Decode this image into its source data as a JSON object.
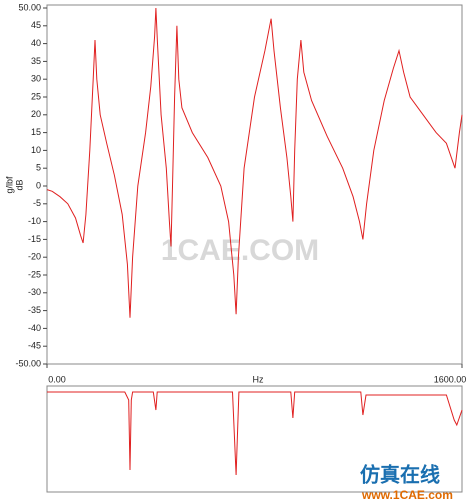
{
  "chart_data": [
    {
      "type": "line",
      "y_label_units": "g/lbf",
      "y_label": "dB",
      "x_label": "Hz",
      "xlim": [
        0,
        1600
      ],
      "xticks": [
        {
          "value": 0,
          "label": "0.00"
        },
        {
          "value": 1600,
          "label": "1600.00"
        }
      ],
      "ylim": [
        -50,
        50
      ],
      "yticks": [
        {
          "value": -50,
          "label": "-50.00"
        },
        -45,
        -40,
        -35,
        -30,
        -25,
        -20,
        -15,
        -10,
        -5,
        0,
        5,
        10,
        15,
        20,
        25,
        30,
        35,
        40,
        45,
        {
          "value": 50,
          "label": "50.00"
        }
      ],
      "grid": false,
      "series": [
        {
          "color": "#e02020",
          "x": [
            0,
            20,
            50,
            80,
            110,
            130,
            139,
            150,
            165,
            178,
            185,
            192,
            205,
            230,
            260,
            290,
            310,
            320,
            330,
            350,
            380,
            400,
            415,
            420,
            426,
            440,
            460,
            472,
            478,
            484,
            492,
            501,
            508,
            520,
            560,
            620,
            670,
            700,
            720,
            729,
            738,
            760,
            800,
            840,
            864,
            875,
            900,
            925,
            940,
            948,
            955,
            965,
            979,
            990,
            1020,
            1080,
            1140,
            1180,
            1205,
            1218,
            1232,
            1260,
            1300,
            1335,
            1357,
            1375,
            1400,
            1450,
            1500,
            1540,
            1573,
            1590,
            1600
          ],
          "values": [
            -1,
            -1.5,
            -3,
            -5,
            -9,
            -14,
            -16,
            -8,
            10,
            30,
            41,
            30,
            20,
            12,
            3,
            -8,
            -22,
            -37,
            -20,
            0,
            15,
            28,
            42,
            50,
            40,
            20,
            5,
            -10,
            -17,
            0,
            25,
            45,
            30,
            22,
            15,
            8,
            0,
            -10,
            -25,
            -36,
            -20,
            5,
            25,
            38,
            47,
            38,
            22,
            8,
            -3,
            -10,
            10,
            30,
            41,
            32,
            24,
            14,
            5,
            -3,
            -10,
            -15,
            -5,
            10,
            24,
            33,
            38,
            32,
            25,
            20,
            15,
            12,
            5,
            15,
            20
          ]
        }
      ]
    },
    {
      "type": "line",
      "xlim": [
        0,
        1600
      ],
      "ylim": [
        0,
        1
      ],
      "series": [
        {
          "color": "#e02020",
          "x": [
            0,
            300,
            315,
            320,
            325,
            330,
            410,
            420,
            425,
            715,
            729,
            740,
            940,
            948,
            955,
            1210,
            1218,
            1230,
            1540,
            1570,
            1580,
            1600
          ],
          "values": [
            0.98,
            0.98,
            0.9,
            0.2,
            0.9,
            0.98,
            0.98,
            0.8,
            0.98,
            0.98,
            0.15,
            0.98,
            0.98,
            0.72,
            0.98,
            0.98,
            0.75,
            0.95,
            0.95,
            0.7,
            0.65,
            0.8
          ]
        }
      ]
    }
  ],
  "watermark": {
    "center": "1CAE.COM",
    "brand": "仿真在线",
    "site": "www.1CAE.com"
  }
}
